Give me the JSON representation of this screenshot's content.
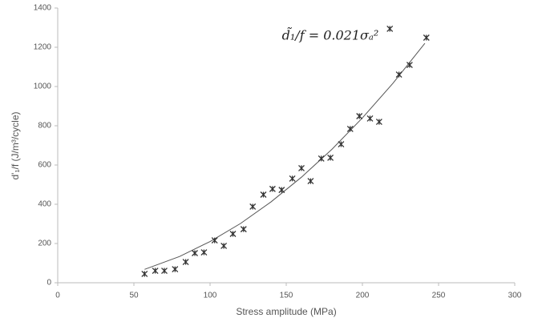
{
  "chart_data": {
    "type": "scatter",
    "x_label": "Stress amplitude (MPa)",
    "y_label": "d'₁/f  (J/m³/cycle)",
    "annotation": "d̃₁/f = 0.021σₐ²",
    "xlim": [
      0,
      300
    ],
    "xticks": [
      0,
      50,
      100,
      150,
      200,
      250,
      300
    ],
    "ylim": [
      0,
      1400
    ],
    "yticks": [
      0,
      200,
      400,
      600,
      800,
      1000,
      1200,
      1400
    ],
    "series": [
      {
        "color": "#333333",
        "x": [
          57,
          64,
          70,
          77,
          84,
          90,
          96,
          103,
          109,
          115,
          122,
          128,
          135,
          141,
          147,
          154,
          160,
          166,
          173,
          179,
          186,
          192,
          198,
          205,
          211,
          218,
          224,
          231,
          242
        ],
        "values": [
          45,
          61,
          61,
          69,
          106,
          151,
          155,
          216,
          188,
          249,
          273,
          388,
          449,
          478,
          473,
          531,
          584,
          518,
          633,
          637,
          706,
          784,
          849,
          837,
          820,
          1294,
          1061,
          1110,
          1249
        ]
      }
    ],
    "fit_curve": {
      "color": "#555555",
      "x": [
        57,
        80,
        100,
        120,
        140,
        160,
        180,
        200,
        220,
        241
      ],
      "y": [
        68,
        134,
        210,
        302,
        412,
        538,
        680,
        840,
        1016,
        1220
      ]
    }
  }
}
